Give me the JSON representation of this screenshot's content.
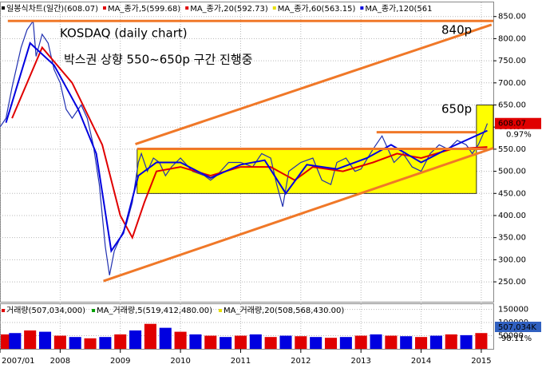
{
  "chart_data": [
    {
      "type": "line",
      "legend": [
        {
          "label": "일봉식차트(일간)(608.07)",
          "color": "#000000"
        },
        {
          "label": "MA_종가,5(599.68)",
          "color": "#e00000"
        },
        {
          "label": "MA_종가,20(592.73)",
          "color": "#e00000"
        },
        {
          "label": "MA_종가,60(563.15)",
          "color": "#e8e000"
        },
        {
          "label": "MA_종가,120(561",
          "color": "#0000e0"
        }
      ],
      "annotations": [
        "KOSDAQ (daily chart)",
        "박스권 상향 550~650p 구간 진행중",
        "840p",
        "650p"
      ],
      "xlim": [
        2007,
        2015.2
      ],
      "xticks": [
        {
          "value": 2007,
          "label": "2007/01"
        },
        2008,
        2009,
        2010,
        2011,
        2012,
        2013,
        2014,
        2015
      ],
      "ylim": [
        205,
        882
      ],
      "yticks": [
        {
          "value": 250,
          "label": "250.00"
        },
        {
          "value": 300,
          "label": "300.00"
        },
        {
          "value": 350,
          "label": "350.00"
        },
        {
          "value": 400,
          "label": "400.00"
        },
        {
          "value": 450,
          "label": "450.00"
        },
        {
          "value": 500,
          "label": "500.00"
        },
        {
          "value": 550,
          "label": "550.00"
        },
        {
          "value": 600,
          "label": "600.00"
        },
        {
          "value": 650,
          "label": "650.00"
        },
        {
          "value": 700,
          "label": "700.00"
        },
        {
          "value": 750,
          "label": "750.00"
        },
        {
          "value": 800,
          "label": "800.00"
        },
        {
          "value": 850,
          "label": "850.00"
        }
      ],
      "grid": true,
      "boxes": [
        {
          "x": [
            2009.28,
            2014.92
          ],
          "y": [
            450,
            550
          ],
          "color": "#ffff00"
        },
        {
          "x": [
            2014.92,
            2015.2
          ],
          "y": [
            550,
            650
          ],
          "color": "#ffff00"
        }
      ],
      "lines": [
        {
          "x": [
            2007.13,
            2015.2
          ],
          "y": [
            840,
            840
          ],
          "color": "#f07828"
        },
        {
          "x": [
            2009.25,
            2015.17
          ],
          "y": [
            561.5,
            831.6
          ],
          "color": "#f07828"
        },
        {
          "x": [
            2008.72,
            2015.2
          ],
          "y": [
            251.8,
            552.5
          ],
          "color": "#f07828"
        },
        {
          "x": [
            2009.28,
            2015.1
          ],
          "y": [
            550.7,
            550.7
          ],
          "color": "#f07828"
        },
        {
          "x": [
            2013.26,
            2014.92
          ],
          "y": [
            588.5,
            588.5
          ],
          "color": "#f07828"
        }
      ],
      "series": [
        {
          "color": "#2030b0",
          "x": [
            2007.0,
            2007.1,
            2007.2,
            2007.35,
            2007.45,
            2007.55,
            2007.6,
            2007.7,
            2007.8,
            2007.9,
            2008.0,
            2008.1,
            2008.2,
            2008.35,
            2008.45,
            2008.55,
            2008.65,
            2008.75,
            2008.82,
            2008.9,
            2009.0,
            2009.1,
            2009.2,
            2009.3,
            2009.35,
            2009.45,
            2009.55,
            2009.65,
            2009.75,
            2009.85,
            2010.0,
            2010.2,
            2010.4,
            2010.5,
            2010.6,
            2010.8,
            2011.0,
            2011.2,
            2011.35,
            2011.5,
            2011.6,
            2011.7,
            2011.8,
            2012.0,
            2012.2,
            2012.35,
            2012.5,
            2012.6,
            2012.75,
            2012.9,
            2013.0,
            2013.2,
            2013.35,
            2013.45,
            2013.55,
            2013.7,
            2013.85,
            2014.0,
            2014.15,
            2014.3,
            2014.45,
            2014.6,
            2014.75,
            2014.85,
            2014.95,
            2015.05,
            2015.1
          ],
          "values": [
            600,
            620,
            690,
            780,
            820,
            840,
            760,
            810,
            790,
            730,
            700,
            640,
            620,
            650,
            620,
            560,
            470,
            330,
            265,
            320,
            350,
            380,
            430,
            520,
            540,
            500,
            530,
            520,
            490,
            510,
            530,
            500,
            490,
            480,
            490,
            520,
            520,
            510,
            540,
            530,
            470,
            420,
            500,
            520,
            530,
            480,
            470,
            520,
            530,
            500,
            505,
            550,
            580,
            550,
            520,
            540,
            510,
            500,
            540,
            560,
            550,
            570,
            560,
            540,
            560,
            590,
            608.07
          ]
        },
        {
          "color": "#e00000",
          "x": [
            2007.2,
            2007.7,
            2008.2,
            2008.7,
            2009.0,
            2009.2,
            2009.4,
            2009.6,
            2010.0,
            2010.5,
            2011.0,
            2011.5,
            2011.9,
            2012.2,
            2012.7,
            2013.2,
            2013.6,
            2014.0,
            2014.5,
            2015.1
          ],
          "values": [
            620,
            780,
            700,
            560,
            400,
            350,
            430,
            500,
            510,
            490,
            510,
            510,
            480,
            510,
            500,
            520,
            540,
            530,
            550,
            555
          ]
        },
        {
          "color": "#0000e0",
          "x": [
            2007.1,
            2007.5,
            2007.9,
            2008.3,
            2008.6,
            2008.85,
            2009.05,
            2009.3,
            2009.6,
            2010.0,
            2010.5,
            2011.0,
            2011.4,
            2011.75,
            2012.1,
            2012.6,
            2013.1,
            2013.5,
            2014.0,
            2014.5,
            2015.1
          ],
          "values": [
            610,
            790,
            740,
            640,
            540,
            320,
            360,
            490,
            520,
            520,
            485,
            515,
            525,
            450,
            515,
            505,
            530,
            560,
            520,
            555,
            592
          ]
        }
      ],
      "last": 608.07,
      "change": {
        "value": 0.97,
        "label": "0.97%"
      }
    },
    {
      "type": "bar",
      "legend": [
        {
          "label": "거래량(507,034,000)",
          "color": "#e00000"
        },
        {
          "label": "MA_거래량,5(519,412,480.00)",
          "color": "#00a000"
        },
        {
          "label": "MA_거래량,20(508,568,430.00)",
          "color": "#e8e000"
        }
      ],
      "ylim": [
        0,
        170000
      ],
      "yticks": [
        50000,
        100000,
        150000
      ],
      "colors": [
        "#e00000",
        "#0000e0"
      ],
      "x": [
        2007.0,
        2007.25,
        2007.5,
        2007.75,
        2008.0,
        2008.25,
        2008.5,
        2008.75,
        2009.0,
        2009.25,
        2009.5,
        2009.75,
        2010.0,
        2010.25,
        2010.5,
        2010.75,
        2011.0,
        2011.25,
        2011.5,
        2011.75,
        2012.0,
        2012.25,
        2012.5,
        2012.75,
        2013.0,
        2013.25,
        2013.5,
        2013.75,
        2014.0,
        2014.25,
        2014.5,
        2014.75,
        2015.0
      ],
      "values": [
        55000,
        60000,
        70000,
        65000,
        50000,
        45000,
        40000,
        45000,
        55000,
        70000,
        95000,
        80000,
        65000,
        55000,
        50000,
        45000,
        50000,
        55000,
        45000,
        50000,
        48000,
        45000,
        42000,
        45000,
        50000,
        55000,
        50000,
        48000,
        45000,
        50000,
        55000,
        52000,
        60000
      ],
      "last": {
        "value": 507034,
        "label": "507,034K"
      },
      "ratio": {
        "value": 98.11,
        "label": "98.11%"
      }
    }
  ]
}
